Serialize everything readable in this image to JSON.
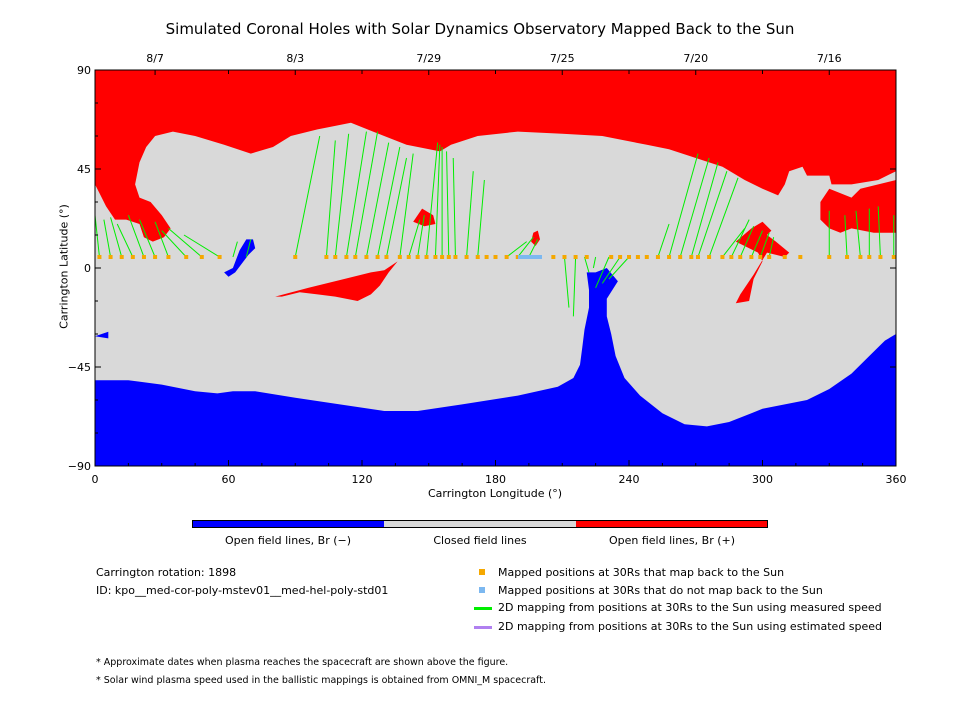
{
  "chart_data": {
    "type": "map",
    "title": "Simulated Coronal Holes with Solar Dynamics Observatory Mapped Back to the Sun",
    "xlabel": "Carrington Longitude (°)",
    "ylabel": "Carrington Latitude (°)",
    "xlim": [
      0,
      360
    ],
    "ylim": [
      -90,
      90
    ],
    "x_ticks": [
      "0",
      "60",
      "120",
      "180",
      "240",
      "300",
      "360"
    ],
    "y_ticks": [
      "90",
      "45",
      "0",
      "−45",
      "−90"
    ],
    "top_axis": {
      "ticks": [
        {
          "lon": 27,
          "label": "8/7"
        },
        {
          "lon": 90,
          "label": "8/3"
        },
        {
          "lon": 150,
          "label": "7/29"
        },
        {
          "lon": 210,
          "label": "7/25"
        },
        {
          "lon": 270,
          "label": "7/20"
        },
        {
          "lon": 330,
          "label": "7/16"
        }
      ]
    },
    "regions": {
      "north_positive": [
        [
          0,
          90
        ],
        [
          360,
          90
        ],
        [
          360,
          44
        ],
        [
          352,
          40
        ],
        [
          340,
          38
        ],
        [
          331,
          38
        ],
        [
          330,
          42
        ],
        [
          320,
          42
        ],
        [
          318,
          46
        ],
        [
          312,
          44
        ],
        [
          310,
          38
        ],
        [
          307,
          33
        ],
        [
          300,
          36
        ],
        [
          292,
          40
        ],
        [
          282,
          46
        ],
        [
          270,
          50
        ],
        [
          258,
          54
        ],
        [
          248,
          56
        ],
        [
          238,
          58
        ],
        [
          228,
          60
        ],
        [
          210,
          61
        ],
        [
          190,
          62
        ],
        [
          172,
          60
        ],
        [
          160,
          56
        ],
        [
          155,
          53
        ],
        [
          140,
          56
        ],
        [
          125,
          62
        ],
        [
          115,
          66
        ],
        [
          100,
          63
        ],
        [
          88,
          60
        ],
        [
          80,
          55
        ],
        [
          70,
          52
        ],
        [
          58,
          56
        ],
        [
          45,
          60
        ],
        [
          35,
          62
        ],
        [
          27,
          60
        ],
        [
          23,
          55
        ],
        [
          20,
          48
        ],
        [
          18,
          38
        ],
        [
          20,
          32
        ],
        [
          25,
          30
        ],
        [
          30,
          24
        ],
        [
          34,
          18
        ],
        [
          31,
          14
        ],
        [
          26,
          12
        ],
        [
          22,
          14
        ],
        [
          20,
          20
        ],
        [
          14,
          22
        ],
        [
          9,
          22
        ],
        [
          5,
          28
        ],
        [
          2,
          34
        ],
        [
          0,
          38
        ]
      ],
      "north_extra": [
        [
          330,
          36
        ],
        [
          340,
          32
        ],
        [
          344,
          36
        ],
        [
          360,
          40
        ],
        [
          360,
          16
        ],
        [
          350,
          16
        ],
        [
          340,
          18
        ],
        [
          335,
          16
        ],
        [
          330,
          18
        ],
        [
          326,
          22
        ],
        [
          326,
          30
        ]
      ],
      "positive_small_1": [
        [
          147,
          27
        ],
        [
          152,
          24
        ],
        [
          153,
          20
        ],
        [
          148,
          19
        ],
        [
          143,
          21
        ]
      ],
      "positive_small_2": [
        [
          199,
          17
        ],
        [
          200,
          13
        ],
        [
          198,
          10
        ],
        [
          196,
          12
        ],
        [
          197,
          16
        ]
      ],
      "positive_ribbon": [
        [
          81,
          -13
        ],
        [
          96,
          -9
        ],
        [
          112,
          -5
        ],
        [
          124,
          -2
        ],
        [
          130,
          -1
        ],
        [
          136,
          3
        ],
        [
          132,
          -2
        ],
        [
          128,
          -8
        ],
        [
          124,
          -12
        ],
        [
          118,
          -15
        ],
        [
          108,
          -13
        ],
        [
          100,
          -12
        ],
        [
          92,
          -11
        ],
        [
          84,
          -13
        ]
      ],
      "positive_lobe": [
        [
          288,
          12
        ],
        [
          295,
          18
        ],
        [
          300,
          21
        ],
        [
          304,
          17
        ],
        [
          302,
          15
        ],
        [
          306,
          12
        ],
        [
          312,
          7
        ],
        [
          310,
          5
        ],
        [
          302,
          7
        ],
        [
          296,
          -3
        ],
        [
          290,
          -12
        ],
        [
          288,
          -16
        ],
        [
          294,
          -15
        ],
        [
          296,
          -5
        ],
        [
          300,
          3
        ],
        [
          298,
          7
        ]
      ],
      "south_negative": [
        [
          0,
          -51
        ],
        [
          15,
          -51
        ],
        [
          30,
          -53
        ],
        [
          45,
          -56
        ],
        [
          55,
          -57
        ],
        [
          62,
          -56
        ],
        [
          72,
          -56
        ],
        [
          90,
          -59
        ],
        [
          110,
          -62
        ],
        [
          130,
          -65
        ],
        [
          145,
          -65
        ],
        [
          165,
          -62
        ],
        [
          190,
          -58
        ],
        [
          208,
          -54
        ],
        [
          215,
          -50
        ],
        [
          218,
          -44
        ],
        [
          219,
          -36
        ],
        [
          220,
          -28
        ],
        [
          222,
          -18
        ],
        [
          222,
          -10
        ],
        [
          221,
          -2
        ],
        [
          225,
          -2
        ],
        [
          230,
          0
        ],
        [
          235,
          -6
        ],
        [
          230,
          -14
        ],
        [
          230,
          -22
        ],
        [
          232,
          -30
        ],
        [
          234,
          -40
        ],
        [
          238,
          -50
        ],
        [
          245,
          -58
        ],
        [
          255,
          -66
        ],
        [
          265,
          -71
        ],
        [
          275,
          -72
        ],
        [
          285,
          -70
        ],
        [
          295,
          -66
        ],
        [
          300,
          -64
        ],
        [
          320,
          -60
        ],
        [
          330,
          -55
        ],
        [
          340,
          -48
        ],
        [
          348,
          -40
        ],
        [
          355,
          -33
        ],
        [
          360,
          -30
        ],
        [
          360,
          -90
        ],
        [
          0,
          -90
        ]
      ],
      "negative_small": [
        [
          62,
          0
        ],
        [
          65,
          8
        ],
        [
          68,
          13
        ],
        [
          71,
          13
        ],
        [
          72,
          9
        ],
        [
          69,
          6
        ],
        [
          66,
          2
        ],
        [
          63,
          -2
        ],
        [
          60,
          -4
        ],
        [
          58,
          -2
        ]
      ],
      "negative_specks": [
        [
          0,
          -31
        ],
        [
          6,
          -29
        ],
        [
          6,
          -32
        ]
      ]
    },
    "mapped_positions_30Rs_lat": 5,
    "mapped_back_lon": [
      2,
      7,
      12,
      17,
      22,
      27,
      33,
      41,
      48,
      56,
      90,
      104,
      108,
      113,
      117,
      122,
      127,
      131,
      137,
      141,
      145,
      149,
      153,
      156,
      159,
      162,
      167,
      172,
      176,
      180,
      185,
      190,
      195,
      206,
      211,
      216,
      221,
      232,
      236,
      240,
      244,
      248,
      253,
      258,
      263,
      268,
      271,
      276,
      282,
      286,
      290,
      295,
      299,
      303,
      310,
      317,
      330,
      338,
      344,
      348,
      353,
      359
    ],
    "mapped_not_back_lon_range": [
      191,
      200
    ],
    "mappings_measured_speed": [
      [
        2,
        5,
        0,
        24
      ],
      [
        7,
        5,
        4,
        22
      ],
      [
        12,
        5,
        7,
        23
      ],
      [
        17,
        5,
        10,
        20
      ],
      [
        22,
        5,
        15,
        24
      ],
      [
        27,
        5,
        20,
        22
      ],
      [
        33,
        5,
        27,
        21
      ],
      [
        41,
        5,
        30,
        17
      ],
      [
        48,
        5,
        33,
        18
      ],
      [
        56,
        5,
        40,
        15
      ],
      [
        62,
        5,
        64,
        12
      ],
      [
        68,
        5,
        70,
        13
      ],
      [
        90,
        5,
        101,
        60
      ],
      [
        104,
        5,
        108,
        58
      ],
      [
        108,
        5,
        114,
        61
      ],
      [
        113,
        5,
        122,
        62
      ],
      [
        117,
        5,
        127,
        62
      ],
      [
        122,
        5,
        132,
        57
      ],
      [
        127,
        5,
        137,
        55
      ],
      [
        131,
        5,
        140,
        50
      ],
      [
        137,
        5,
        143,
        52
      ],
      [
        141,
        5,
        146,
        22
      ],
      [
        145,
        5,
        148,
        24
      ],
      [
        149,
        5,
        154,
        57
      ],
      [
        153,
        5,
        155,
        56
      ],
      [
        156,
        5,
        156,
        55
      ],
      [
        159,
        5,
        158,
        53
      ],
      [
        162,
        5,
        161,
        50
      ],
      [
        167,
        5,
        170,
        44
      ],
      [
        172,
        5,
        175,
        40
      ],
      [
        185,
        5,
        194,
        12
      ],
      [
        190,
        5,
        197,
        14
      ],
      [
        195,
        5,
        199,
        13
      ],
      [
        220,
        5,
        222,
        -2
      ],
      [
        225,
        5,
        224,
        0
      ],
      [
        216,
        5,
        215,
        -22
      ],
      [
        211,
        5,
        213,
        -18
      ],
      [
        231,
        5,
        225,
        -9
      ],
      [
        236,
        5,
        228,
        -7
      ],
      [
        240,
        5,
        231,
        -5
      ],
      [
        253,
        5,
        258,
        20
      ],
      [
        258,
        5,
        271,
        52
      ],
      [
        263,
        5,
        276,
        50
      ],
      [
        268,
        5,
        280,
        48
      ],
      [
        271,
        5,
        284,
        44
      ],
      [
        276,
        5,
        289,
        41
      ],
      [
        282,
        5,
        292,
        18
      ],
      [
        286,
        5,
        294,
        22
      ],
      [
        290,
        5,
        296,
        19
      ],
      [
        295,
        5,
        300,
        17
      ],
      [
        299,
        5,
        303,
        16
      ],
      [
        303,
        5,
        305,
        14
      ],
      [
        330,
        5,
        330,
        26
      ],
      [
        338,
        5,
        337,
        24
      ],
      [
        344,
        5,
        342,
        26
      ],
      [
        348,
        5,
        348,
        27
      ],
      [
        353,
        5,
        352,
        28
      ],
      [
        359,
        5,
        359,
        24
      ]
    ],
    "colors": {
      "negative_open": "#0000ff",
      "closed": "#d9d9d9",
      "positive_open": "#ff0000",
      "mapped_back": "#f5a800",
      "not_mapped_back": "#7cb8f0",
      "measured_speed": "#00ee00",
      "estimated_speed": "#b080f0"
    }
  },
  "colorbar": {
    "labels": [
      "Open field lines, Br (−)",
      "Closed field lines",
      "Open field lines, Br (+)"
    ]
  },
  "info": {
    "rotation": "Carrington rotation: 1898",
    "id": "ID: kpo__med-cor-poly-mstev01__med-hel-poly-std01"
  },
  "legend": [
    {
      "label": "Mapped positions at 30Rs that map back to the Sun",
      "kind": "square",
      "color": "#f5a800"
    },
    {
      "label": "Mapped positions at 30Rs that do not map back to the Sun",
      "kind": "square",
      "color": "#7cb8f0"
    },
    {
      "label": "2D mapping from positions at 30Rs to the Sun using measured speed",
      "kind": "line",
      "color": "#00ee00"
    },
    {
      "label": "2D mapping from positions at 30Rs to the Sun using estimated speed",
      "kind": "line",
      "color": "#b080f0"
    }
  ],
  "notes": [
    "* Approximate dates when plasma reaches the spacecraft are shown above the figure.",
    "* Solar wind plasma speed used in the ballistic mappings is obtained from OMNI_M spacecraft."
  ]
}
